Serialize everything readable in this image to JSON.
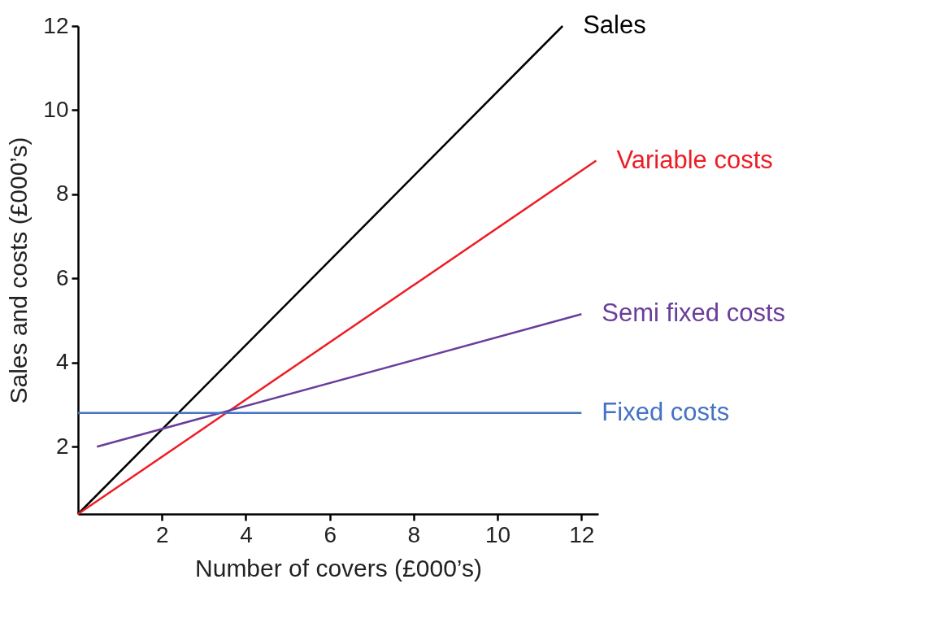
{
  "chart_data": {
    "type": "line",
    "xlabel": "Number of covers (£000’s)",
    "ylabel": "Sales and costs (£000’s)",
    "xlim": [
      0,
      12.4
    ],
    "ylim": [
      0.4,
      12
    ],
    "xticks": [
      2,
      4,
      6,
      8,
      10,
      12
    ],
    "yticks": [
      2,
      4,
      6,
      8,
      10,
      12
    ],
    "grid": false,
    "legend": false,
    "marker": "none",
    "line_style": "solid",
    "series": [
      {
        "name": "Sales",
        "color": "#000000",
        "x": [
          0,
          11.55
        ],
        "values": [
          0.4,
          12
        ]
      },
      {
        "name": "Variable costs",
        "color": "#ed1c24",
        "x": [
          0,
          12.35
        ],
        "values": [
          0.4,
          8.8
        ]
      },
      {
        "name": "Semi fixed costs",
        "color": "#6a3d9a",
        "x": [
          0.45,
          12
        ],
        "values": [
          2,
          5.15
        ]
      },
      {
        "name": "Fixed costs",
        "color": "#4472c4",
        "x": [
          0,
          12
        ],
        "values": [
          2.8,
          2.8
        ]
      }
    ]
  }
}
